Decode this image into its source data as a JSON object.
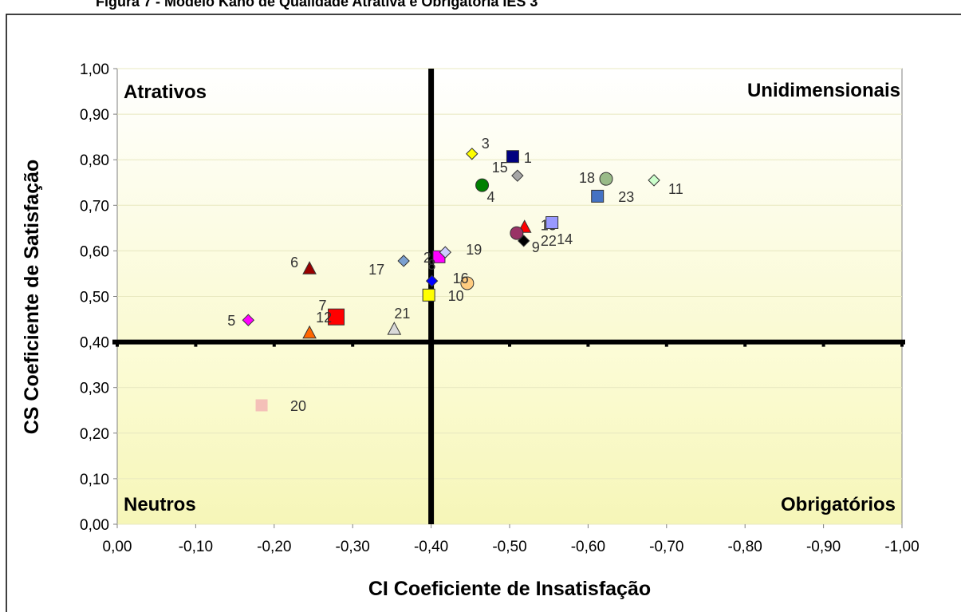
{
  "chart_data": {
    "type": "scatter",
    "title": "Figura 7 - Modelo Kano de Qualidade Atrativa e Obrigatória IES 3",
    "xlabel": "CI Coeficiente de Insatisfação",
    "ylabel": "CS Coeficiente de Satisfação",
    "xlim": [
      0,
      -1
    ],
    "ylim": [
      0,
      1
    ],
    "xticks": [
      {
        "value": 0,
        "label": "0,00"
      },
      {
        "value": -0.1,
        "label": "-0,10"
      },
      {
        "value": -0.2,
        "label": "-0,20"
      },
      {
        "value": -0.3,
        "label": "-0,30"
      },
      {
        "value": -0.4,
        "label": "-0,40"
      },
      {
        "value": -0.5,
        "label": "-0,50"
      },
      {
        "value": -0.6,
        "label": "-0,60"
      },
      {
        "value": -0.7,
        "label": "-0,70"
      },
      {
        "value": -0.8,
        "label": "-0,80"
      },
      {
        "value": -0.9,
        "label": "-0,90"
      },
      {
        "value": -1,
        "label": "-1,00"
      }
    ],
    "yticks": [
      {
        "value": 0,
        "label": "0,00"
      },
      {
        "value": 0.1,
        "label": "0,10"
      },
      {
        "value": 0.2,
        "label": "0,20"
      },
      {
        "value": 0.3,
        "label": "0,30"
      },
      {
        "value": 0.4,
        "label": "0,40"
      },
      {
        "value": 0.5,
        "label": "0,50"
      },
      {
        "value": 0.6,
        "label": "0,60"
      },
      {
        "value": 0.7,
        "label": "0,70"
      },
      {
        "value": 0.8,
        "label": "0,80"
      },
      {
        "value": 0.9,
        "label": "0,90"
      },
      {
        "value": 1,
        "label": "1,00"
      }
    ],
    "quadrant_lines": {
      "x": -0.4,
      "y": 0.4
    },
    "quadrants": {
      "top_left": "Atrativos",
      "top_right": "Unidimensionais",
      "bottom_left": "Neutros",
      "bottom_right": "Obrigatórios"
    },
    "points": [
      {
        "label": "1",
        "x": -0.504,
        "y": 0.807,
        "color": "#000080",
        "marker": "square"
      },
      {
        "label": "2",
        "x": -0.446,
        "y": 0.529,
        "color": "#ffcc80",
        "marker": "circle"
      },
      {
        "label": "3",
        "x": -0.452,
        "y": 0.813,
        "color": "#ffff00",
        "marker": "diamond"
      },
      {
        "label": "4",
        "x": -0.465,
        "y": 0.744,
        "color": "#008000",
        "marker": "circle"
      },
      {
        "label": "5",
        "x": -0.167,
        "y": 0.448,
        "color": "#ff00ff",
        "marker": "diamond"
      },
      {
        "label": "6",
        "x": -0.245,
        "y": 0.56,
        "color": "#990000",
        "marker": "triangle"
      },
      {
        "label": "7",
        "x": -0.279,
        "y": 0.455,
        "color": "#ff0000",
        "marker": "bigsquare"
      },
      {
        "label": "8",
        "x": -0.41,
        "y": 0.587,
        "color": "#ff00ff",
        "marker": "square"
      },
      {
        "label": "9",
        "x": -0.518,
        "y": 0.622,
        "color": "#000000",
        "marker": "diamond"
      },
      {
        "label": "10",
        "x": -0.397,
        "y": 0.503,
        "color": "#ffff00",
        "marker": "square"
      },
      {
        "label": "11",
        "x": -0.684,
        "y": 0.755,
        "color": "#ccffcc",
        "marker": "diamond"
      },
      {
        "label": "12",
        "x": -0.245,
        "y": 0.419,
        "color": "#ff6600",
        "marker": "triangle"
      },
      {
        "label": "13",
        "x": -0.519,
        "y": 0.651,
        "color": "#ff0000",
        "marker": "triangle"
      },
      {
        "label": "14",
        "x": -0.554,
        "y": 0.662,
        "color": "#9999ff",
        "marker": "square"
      },
      {
        "label": "15",
        "x": -0.51,
        "y": 0.765,
        "color": "#a6a6a6",
        "marker": "diamond"
      },
      {
        "label": "16",
        "x": -0.401,
        "y": 0.534,
        "color": "#0000ff",
        "marker": "diamond"
      },
      {
        "label": "17",
        "x": -0.365,
        "y": 0.578,
        "color": "#7ba0d0",
        "marker": "diamond"
      },
      {
        "label": "18",
        "x": -0.623,
        "y": 0.758,
        "color": "#99bb88",
        "marker": "circle"
      },
      {
        "label": "19",
        "x": -0.418,
        "y": 0.597,
        "color": "#ccccff",
        "marker": "diamond"
      },
      {
        "label": "20",
        "x": -0.184,
        "y": 0.261,
        "color": "#f4c0b8",
        "marker": "plainsquare"
      },
      {
        "label": "21",
        "x": -0.353,
        "y": 0.427,
        "color": "#d9d9d9",
        "marker": "triangle"
      },
      {
        "label": "22",
        "x": -0.509,
        "y": 0.639,
        "color": "#993366",
        "marker": "circle"
      },
      {
        "label": "23",
        "x": -0.612,
        "y": 0.72,
        "color": "#4472c4",
        "marker": "square"
      }
    ]
  }
}
